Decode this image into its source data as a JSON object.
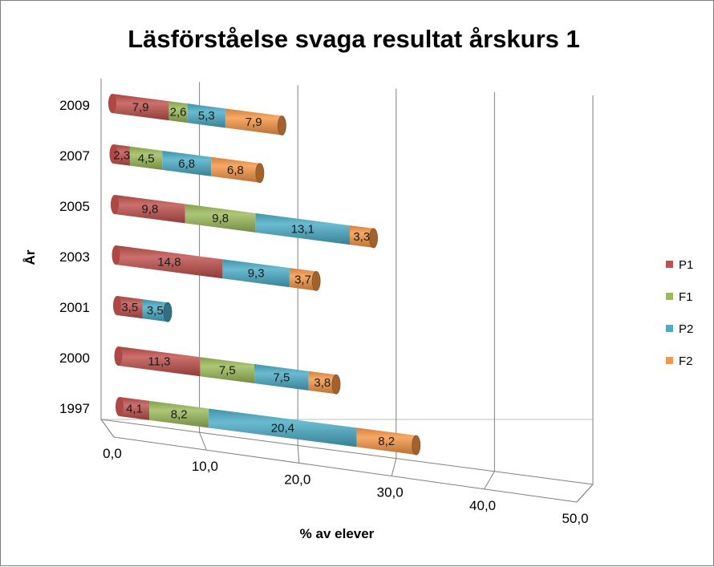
{
  "chart_data": {
    "type": "bar",
    "orientation": "horizontal",
    "stacked": true,
    "style": "3d-cylinder",
    "title": "Läsförståelse svaga resultat årskurs 1",
    "xlabel": "% av elever",
    "ylabel": "År",
    "xlim": [
      0,
      50
    ],
    "x_ticks": [
      "0,0",
      "10,0",
      "20,0",
      "30,0",
      "40,0",
      "50,0"
    ],
    "grid": true,
    "legend_position": "right",
    "categories": [
      "1997",
      "2000",
      "2001",
      "2003",
      "2005",
      "2007",
      "2009"
    ],
    "series": [
      {
        "name": "P1",
        "color": "#c0504d",
        "values": [
          4.1,
          11.3,
          3.5,
          14.8,
          9.8,
          2.3,
          7.9
        ],
        "labels": [
          "4,1",
          "11,3",
          "3,5",
          "14,8",
          "9,8",
          "2,3",
          "7,9"
        ]
      },
      {
        "name": "F1",
        "color": "#9bbb59",
        "values": [
          8.2,
          7.5,
          0,
          0,
          9.8,
          4.5,
          2.6
        ],
        "labels": [
          "8,2",
          "7,5",
          "",
          "",
          "9,8",
          "4,5",
          "2,6"
        ]
      },
      {
        "name": "P2",
        "color": "#4bacc6",
        "values": [
          20.4,
          7.5,
          3.5,
          9.3,
          13.1,
          6.8,
          5.3
        ],
        "labels": [
          "20,4",
          "7,5",
          "3,5",
          "9,3",
          "13,1",
          "6,8",
          "5,3"
        ]
      },
      {
        "name": "F2",
        "color": "#f79646",
        "values": [
          8.2,
          3.8,
          0,
          3.7,
          3.3,
          6.8,
          7.9
        ],
        "labels": [
          "8,2",
          "3,8",
          "",
          "3,7",
          "3,3",
          "6,8",
          "7,9"
        ]
      }
    ]
  }
}
